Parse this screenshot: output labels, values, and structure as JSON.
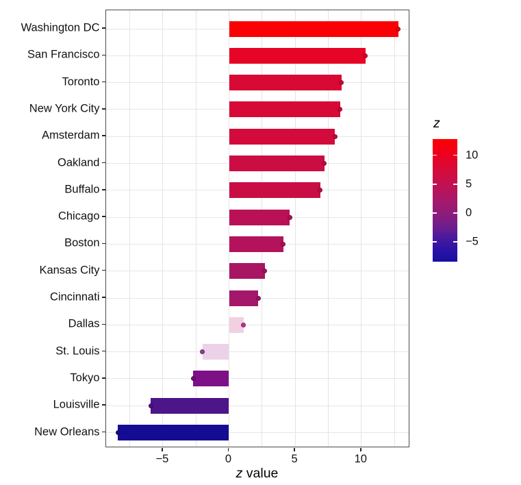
{
  "figure": {
    "xlabel_italic": "z",
    "xlabel_rest": " value",
    "legend_title": "z"
  },
  "chart_data": {
    "type": "bar",
    "orientation": "horizontal",
    "title": "",
    "xlabel": "z value",
    "ylabel": "",
    "xlim": [
      -9.3,
      13.8
    ],
    "grid": true,
    "grid_line_step": 2.5,
    "x_axis_ticks": [
      -5,
      0,
      5,
      10
    ],
    "x_tick_labels": [
      "−5",
      "0",
      "5",
      "10"
    ],
    "categories": [
      "Washington DC",
      "San Francisco",
      "Toronto",
      "New York City",
      "Amsterdam",
      "Oakland",
      "Buffalo",
      "Chicago",
      "Boston",
      "Kansas City",
      "Cincinnati",
      "Dallas",
      "St. Louis",
      "Tokyo",
      "Louisville",
      "New Orleans"
    ],
    "values": [
      12.8,
      10.3,
      8.5,
      8.4,
      8.0,
      7.2,
      6.9,
      4.6,
      4.1,
      2.7,
      2.2,
      1.1,
      -2.0,
      -2.7,
      -5.9,
      -8.4
    ],
    "bar_colors": [
      "#FA0105",
      "#E60427",
      "#D80934",
      "#D70937",
      "#D20B3C",
      "#CC0D43",
      "#C90E46",
      "#BA1156",
      "#B4135C",
      "#A81563",
      "#A3186B",
      "#F2D0E2",
      "#EBD2E9",
      "#7D0F87",
      "#4C1589",
      "#150C94"
    ],
    "dot_colors": [
      "#EE0005",
      "#D80423",
      "#CB0830",
      "#CA0833",
      "#C50A38",
      "#C00C3E",
      "#BD0D41",
      "#AE0F50",
      "#A81156",
      "#9D1359",
      "#981661",
      "#B43889",
      "#913D97",
      "#730C7C",
      "#45137E",
      "#130B88"
    ],
    "legend": {
      "title": "z",
      "position": "right",
      "style": "colorbar",
      "domain_min": -8.4,
      "domain_max": 12.8,
      "ticks": [
        10,
        5,
        0,
        -5
      ],
      "tick_labels": [
        "10",
        "5",
        "0",
        "−5"
      ],
      "gradient_stops": [
        [
          0,
          "#FE0002"
        ],
        [
          13,
          "#EB0021"
        ],
        [
          25,
          "#D60B39"
        ],
        [
          37,
          "#C11153"
        ],
        [
          50,
          "#A7186A"
        ],
        [
          61,
          "#8C1C7B"
        ],
        [
          73,
          "#6A1D90"
        ],
        [
          78,
          "#521B9A"
        ],
        [
          90,
          "#2B13A5"
        ],
        [
          100,
          "#190FA1"
        ]
      ]
    }
  }
}
